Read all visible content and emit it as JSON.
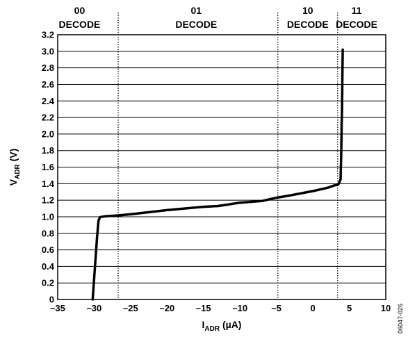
{
  "chart_data": {
    "type": "line",
    "xlim": [
      -35,
      10
    ],
    "ylim": [
      0,
      3.2
    ],
    "x_ticks": [
      "–35",
      "–30",
      "–25",
      "–20",
      "–15",
      "–10",
      "–5",
      "0",
      "5",
      "10"
    ],
    "x_tick_values": [
      -35,
      -30,
      -25,
      -20,
      -15,
      -10,
      -5,
      0,
      5,
      10
    ],
    "y_ticks": [
      "0",
      "0.2",
      "0.4",
      "0.6",
      "0.8",
      "1.0",
      "1.2",
      "1.4",
      "1.6",
      "1.8",
      "2.0",
      "2.2",
      "2.4",
      "2.6",
      "2.8",
      "3.0",
      "3.2"
    ],
    "y_tick_values": [
      0,
      0.2,
      0.4,
      0.6,
      0.8,
      1.0,
      1.2,
      1.4,
      1.6,
      1.8,
      2.0,
      2.2,
      2.4,
      2.6,
      2.8,
      3.0,
      3.2
    ],
    "xlabel": {
      "main": "I",
      "sub": "ADR",
      "unit": " (µA)"
    },
    "ylabel": {
      "main": "V",
      "sub": "ADR",
      "unit": " (V)"
    },
    "grid": "horizontal",
    "region_dividers": [
      -26.7,
      -4.8,
      3.4
    ],
    "regions": [
      {
        "code": "00",
        "label": "DECODE",
        "x": -32
      },
      {
        "code": "01",
        "label": "DECODE",
        "x": -16
      },
      {
        "code": "10",
        "label": "DECODE",
        "x": -0.7
      },
      {
        "code": "11",
        "label": "DECODE",
        "x": 6
      }
    ],
    "series": [
      {
        "color": "#000000",
        "x": [
          -30.2,
          -30.0,
          -29.8,
          -29.6,
          -29.4,
          -29.2,
          -28.5,
          -27.0,
          -25.0,
          -20.0,
          -15.0,
          -13.0,
          -10.0,
          -7.0,
          -5.0,
          -3.0,
          0.0,
          2.0,
          3.0,
          3.5,
          3.8,
          3.9,
          3.95,
          4.0,
          4.05,
          4.1
        ],
        "y": [
          0.0,
          0.25,
          0.5,
          0.75,
          0.95,
          0.995,
          1.005,
          1.015,
          1.03,
          1.08,
          1.12,
          1.13,
          1.17,
          1.19,
          1.23,
          1.26,
          1.31,
          1.35,
          1.38,
          1.39,
          1.45,
          1.8,
          2.1,
          2.3,
          2.7,
          3.02
        ]
      }
    ]
  },
  "figure_id": "06047-026"
}
